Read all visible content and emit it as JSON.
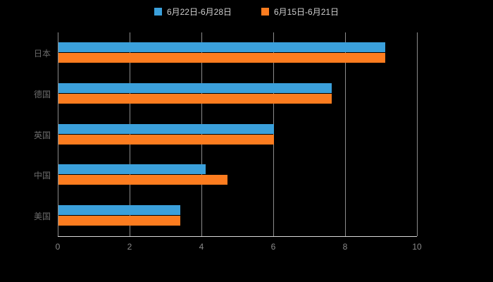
{
  "chart_data": {
    "type": "bar",
    "orientation": "horizontal",
    "title": "",
    "xlabel": "",
    "ylabel": "",
    "categories": [
      "日本",
      "德国",
      "英国",
      "中国",
      "美国"
    ],
    "series": [
      {
        "name": "6月22日-6月28日",
        "color": "#3BA0DB",
        "values": [
          9.1,
          7.6,
          6.0,
          4.1,
          3.4
        ]
      },
      {
        "name": "6月15日-6月21日",
        "color": "#FC7C1F",
        "values": [
          9.1,
          7.6,
          6.0,
          4.7,
          3.4
        ]
      }
    ],
    "xlim": [
      0,
      10
    ],
    "xticks": [
      0,
      2,
      4,
      6,
      8,
      10
    ],
    "grid": true,
    "legend_position": "top"
  },
  "colors": {
    "background": "#000000",
    "grid_line": "#8c8c8c",
    "axis_line": "#d9d9d9",
    "category_text": "#6b6b6b",
    "tick_text": "#8a8a8a",
    "legend_text": "#cfcfcf"
  }
}
